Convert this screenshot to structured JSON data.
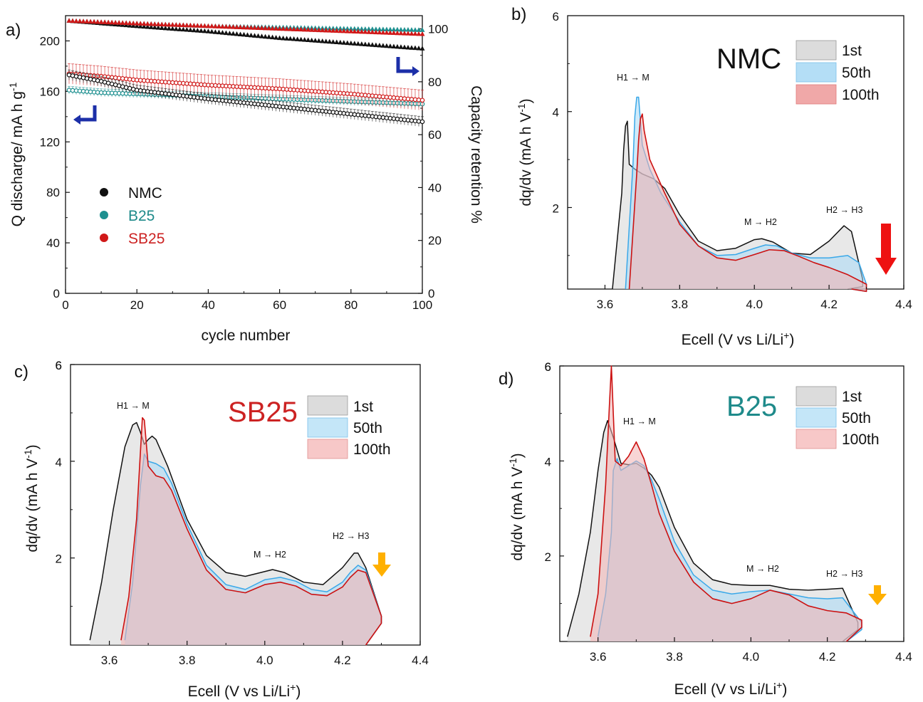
{
  "panels": {
    "a": {
      "letter": "a)",
      "xlabel": "cycle number",
      "ylabel_left": "Q discharge/ mA h g",
      "ylabel_left_sup": "-1",
      "ylabel_right": "Capacity retention %"
    },
    "b": {
      "letter": "b)",
      "sample": "NMC",
      "sample_color": "#111111"
    },
    "c": {
      "letter": "c)",
      "sample": "SB25",
      "sample_color": "#cc2222"
    },
    "d": {
      "letter": "d)",
      "sample": "B25",
      "sample_color": "#1e8a8a"
    }
  },
  "dqdv_axes": {
    "ylabel_pre": "dq/dv (mA h V",
    "ylabel_sup": "-1",
    "ylabel_post": ")",
    "xlabel_pre": "Ecell (V vs Li/Li",
    "xlabel_sup": "+",
    "xlabel_post": ")"
  },
  "dqdv_legend": [
    "1st",
    "50th",
    "100th"
  ],
  "transitions": [
    "H1 → M",
    "M → H2",
    "H2 → H3"
  ],
  "colors": {
    "NMC": "#111111",
    "B25": "#1e9090",
    "SB25": "#d01818",
    "first_fill": "#d8d8d8",
    "fiftieth_fill": "#a8d8f5",
    "fiftieth_line": "#3aa8e8",
    "hundredth_fill": "#f2b2b2",
    "hundredth_line": "#cc1111",
    "corner_arrow": "#1c2fa8",
    "decay_arrow_b": "#ee1111",
    "decay_arrow_cd": "#ffb000"
  },
  "chart_data": [
    {
      "panel": "a",
      "type": "scatter",
      "xlabel": "cycle number",
      "ylabel": "Q discharge/ mA h g-1",
      "ylabel_right": "Capacity retention %",
      "xlim": [
        0,
        100
      ],
      "ylim": [
        0,
        220
      ],
      "ylim_right": [
        0,
        105
      ],
      "xticks": [
        0,
        20,
        40,
        60,
        80,
        100
      ],
      "yticks": [
        0,
        40,
        80,
        120,
        160,
        200
      ],
      "yticks_right": [
        0,
        20,
        40,
        60,
        80,
        100
      ],
      "legend": [
        "NMC",
        "B25",
        "SB25"
      ],
      "legend_position": "center-left",
      "series": [
        {
          "name": "NMC",
          "axis": "left",
          "x": [
            1,
            10,
            20,
            40,
            60,
            80,
            100
          ],
          "y": [
            173,
            168,
            161,
            154,
            148,
            142,
            136
          ]
        },
        {
          "name": "B25",
          "axis": "left",
          "x": [
            1,
            10,
            20,
            40,
            60,
            80,
            100
          ],
          "y": [
            161,
            159,
            158,
            156,
            154,
            152,
            150
          ]
        },
        {
          "name": "SB25",
          "axis": "left",
          "x": [
            1,
            10,
            20,
            40,
            60,
            80,
            100
          ],
          "y": [
            174,
            172,
            169,
            165,
            162,
            158,
            153
          ]
        },
        {
          "name": "NMC",
          "axis": "right",
          "x": [
            1,
            20,
            40,
            60,
            80,
            100
          ],
          "y": [
            103,
            101,
            99,
            96.5,
            94.5,
            92.5
          ]
        },
        {
          "name": "B25",
          "axis": "right",
          "x": [
            1,
            20,
            40,
            60,
            80,
            100
          ],
          "y": [
            103,
            102,
            101,
            100.5,
            100,
            99.5
          ]
        },
        {
          "name": "SB25",
          "axis": "right",
          "x": [
            1,
            20,
            40,
            60,
            80,
            100
          ],
          "y": [
            103,
            102,
            101,
            100,
            99,
            98
          ]
        }
      ]
    },
    {
      "panel": "b",
      "type": "area",
      "title": "NMC",
      "xlim": [
        3.5,
        4.4
      ],
      "ylim": [
        0.3,
        6
      ],
      "xticks": [
        3.6,
        3.8,
        4.0,
        4.2,
        4.4
      ],
      "yticks": [
        2,
        4
      ],
      "series": [
        {
          "name": "1st",
          "x": [
            3.62,
            3.635,
            3.645,
            3.65,
            3.655,
            3.66,
            3.665,
            3.68,
            3.7,
            3.73,
            3.76,
            3.8,
            3.85,
            3.9,
            3.95,
            4.0,
            4.02,
            4.05,
            4.1,
            4.15,
            4.2,
            4.24,
            4.26,
            4.29
          ],
          "y": [
            0.3,
            1.5,
            2.3,
            3.2,
            3.7,
            3.8,
            2.9,
            2.8,
            2.7,
            2.6,
            2.4,
            1.85,
            1.3,
            1.1,
            1.15,
            1.33,
            1.35,
            1.28,
            1.05,
            1.02,
            1.3,
            1.62,
            1.5,
            0.5
          ]
        },
        {
          "name": "50th",
          "x": [
            3.655,
            3.665,
            3.675,
            3.68,
            3.685,
            3.69,
            3.7,
            3.72,
            3.75,
            3.8,
            3.85,
            3.9,
            3.95,
            4.0,
            4.03,
            4.06,
            4.1,
            4.15,
            4.2,
            4.25,
            4.28,
            4.3
          ],
          "y": [
            0.3,
            1.6,
            2.9,
            3.9,
            4.3,
            4.3,
            3.3,
            2.8,
            2.3,
            1.7,
            1.2,
            1.0,
            1.02,
            1.15,
            1.22,
            1.2,
            1.05,
            0.95,
            0.95,
            1.0,
            0.85,
            0.4
          ]
        },
        {
          "name": "100th",
          "x": [
            3.665,
            3.675,
            3.685,
            3.69,
            3.695,
            3.7,
            3.705,
            3.72,
            3.76,
            3.8,
            3.85,
            3.9,
            3.95,
            4.0,
            4.04,
            4.08,
            4.12,
            4.16,
            4.2,
            4.25,
            4.3
          ],
          "y": [
            0.3,
            1.5,
            2.7,
            3.4,
            3.85,
            3.95,
            3.6,
            3.0,
            2.3,
            1.65,
            1.2,
            0.95,
            0.9,
            1.02,
            1.12,
            1.1,
            0.98,
            0.85,
            0.75,
            0.6,
            0.4
          ]
        }
      ]
    },
    {
      "panel": "c",
      "type": "area",
      "title": "SB25",
      "xlim": [
        3.5,
        4.4
      ],
      "ylim": [
        0.2,
        6
      ],
      "xticks": [
        3.6,
        3.8,
        4.0,
        4.2,
        4.4
      ],
      "yticks": [
        2,
        4,
        6
      ],
      "series": [
        {
          "name": "1st",
          "x": [
            3.55,
            3.58,
            3.61,
            3.64,
            3.66,
            3.67,
            3.68,
            3.69,
            3.7,
            3.71,
            3.72,
            3.75,
            3.8,
            3.85,
            3.9,
            3.95,
            4.0,
            4.02,
            4.05,
            4.1,
            4.15,
            4.2,
            4.23,
            4.24,
            4.26,
            4.3
          ],
          "y": [
            0.3,
            1.5,
            3.0,
            4.3,
            4.75,
            4.8,
            4.6,
            4.35,
            4.45,
            4.52,
            4.45,
            3.9,
            2.8,
            2.05,
            1.7,
            1.62,
            1.72,
            1.76,
            1.7,
            1.5,
            1.45,
            1.8,
            2.1,
            2.1,
            1.8,
            0.8
          ]
        },
        {
          "name": "50th",
          "x": [
            3.64,
            3.66,
            3.67,
            3.68,
            3.69,
            3.7,
            3.72,
            3.74,
            3.76,
            3.8,
            3.85,
            3.9,
            3.95,
            4.0,
            4.04,
            4.08,
            4.12,
            4.16,
            4.2,
            4.22,
            4.24,
            4.26,
            4.3
          ],
          "y": [
            0.3,
            1.5,
            2.5,
            3.5,
            4.15,
            4.0,
            3.95,
            3.85,
            3.55,
            2.7,
            1.85,
            1.45,
            1.35,
            1.55,
            1.6,
            1.52,
            1.35,
            1.3,
            1.5,
            1.7,
            1.85,
            1.75,
            0.8
          ]
        },
        {
          "name": "100th",
          "x": [
            3.63,
            3.65,
            3.67,
            3.68,
            3.685,
            3.69,
            3.7,
            3.72,
            3.74,
            3.76,
            3.8,
            3.85,
            3.9,
            3.95,
            4.0,
            4.04,
            4.08,
            4.12,
            4.16,
            4.2,
            4.22,
            4.24,
            4.26,
            4.3
          ],
          "y": [
            0.3,
            1.2,
            2.8,
            4.2,
            4.9,
            4.85,
            3.9,
            3.7,
            3.65,
            3.4,
            2.6,
            1.75,
            1.35,
            1.28,
            1.45,
            1.5,
            1.42,
            1.25,
            1.22,
            1.4,
            1.6,
            1.75,
            1.7,
            0.8
          ]
        }
      ]
    },
    {
      "panel": "d",
      "type": "area",
      "title": "B25",
      "xlim": [
        3.5,
        4.4
      ],
      "ylim": [
        0.2,
        6
      ],
      "xticks": [
        3.6,
        3.8,
        4.0,
        4.2,
        4.4
      ],
      "yticks": [
        2,
        4,
        6
      ],
      "series": [
        {
          "name": "1st",
          "x": [
            3.52,
            3.55,
            3.58,
            3.6,
            3.615,
            3.625,
            3.64,
            3.66,
            3.68,
            3.7,
            3.72,
            3.74,
            3.76,
            3.8,
            3.85,
            3.9,
            3.95,
            4.0,
            4.05,
            4.1,
            4.15,
            4.2,
            4.24,
            4.28
          ],
          "y": [
            0.3,
            1.2,
            2.5,
            3.8,
            4.6,
            4.85,
            4.5,
            3.95,
            3.92,
            3.95,
            3.85,
            3.7,
            3.45,
            2.6,
            1.85,
            1.5,
            1.4,
            1.38,
            1.38,
            1.3,
            1.28,
            1.3,
            1.32,
            0.6
          ]
        },
        {
          "name": "50th",
          "x": [
            3.6,
            3.62,
            3.635,
            3.64,
            3.65,
            3.66,
            3.68,
            3.7,
            3.72,
            3.74,
            3.76,
            3.8,
            3.85,
            3.9,
            3.95,
            4.0,
            4.05,
            4.1,
            4.15,
            4.2,
            4.24,
            4.29
          ],
          "y": [
            0.3,
            1.2,
            2.5,
            3.8,
            4.05,
            3.8,
            3.9,
            4.0,
            3.9,
            3.6,
            3.2,
            2.3,
            1.6,
            1.28,
            1.2,
            1.25,
            1.28,
            1.2,
            1.12,
            1.1,
            1.12,
            0.6
          ]
        },
        {
          "name": "100th",
          "x": [
            3.58,
            3.6,
            3.62,
            3.63,
            3.635,
            3.645,
            3.66,
            3.68,
            3.7,
            3.72,
            3.74,
            3.76,
            3.8,
            3.85,
            3.9,
            3.95,
            4.0,
            4.05,
            4.1,
            4.15,
            4.2,
            4.25,
            4.29
          ],
          "y": [
            0.3,
            1.2,
            3.5,
            5.2,
            6.0,
            4.0,
            3.9,
            4.1,
            4.4,
            4.05,
            3.5,
            2.9,
            2.1,
            1.45,
            1.1,
            1.0,
            1.1,
            1.28,
            1.18,
            0.95,
            0.85,
            0.8,
            0.65
          ]
        }
      ]
    }
  ]
}
